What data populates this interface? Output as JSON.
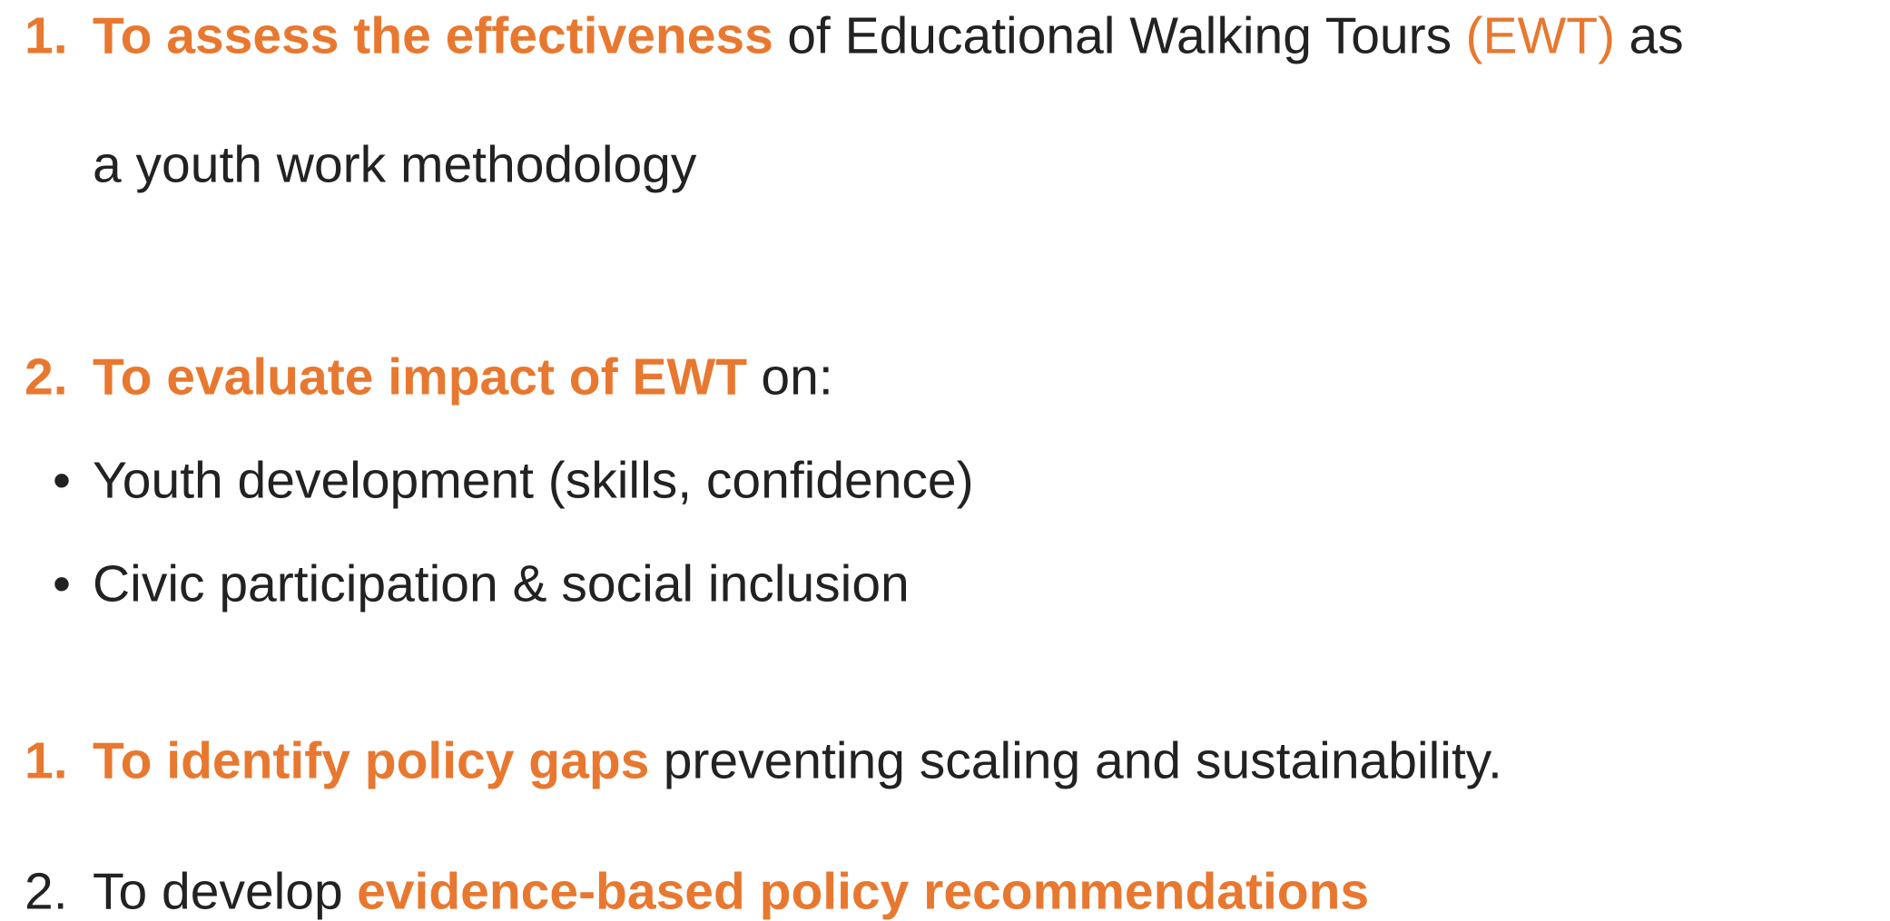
{
  "items": [
    {
      "marker": "1.",
      "segments": [
        {
          "text": "To assess the effectiveness",
          "style": "accent"
        },
        {
          "text": "of Educational Walking Tours",
          "style": "plain"
        },
        {
          "text": "(EWT)",
          "style": "accent-light"
        },
        {
          "text": "as",
          "style": "plain"
        }
      ]
    },
    {
      "segments": [
        {
          "text": "a youth work methodology",
          "style": "plain"
        }
      ]
    },
    {
      "marker": "2.",
      "segments": [
        {
          "text": "To evaluate impact of EWT",
          "style": "accent"
        },
        {
          "text": "on:",
          "style": "plain"
        }
      ]
    },
    {
      "marker": "•",
      "segments": [
        {
          "text": "Youth development (skills, confidence)",
          "style": "plain"
        }
      ]
    },
    {
      "marker": "•",
      "segments": [
        {
          "text": "Civic participation & social inclusion",
          "style": "plain"
        }
      ]
    },
    {
      "marker": "1.",
      "segments": [
        {
          "text": "To identify policy gaps",
          "style": "accent"
        },
        {
          "text": "preventing scaling and sustainability.",
          "style": "plain"
        }
      ]
    },
    {
      "marker": "2.",
      "marker_style": "plain",
      "segments": [
        {
          "text": "To develop",
          "style": "plain"
        },
        {
          "text": "evidence-based policy recommendations",
          "style": "accent"
        }
      ]
    }
  ]
}
